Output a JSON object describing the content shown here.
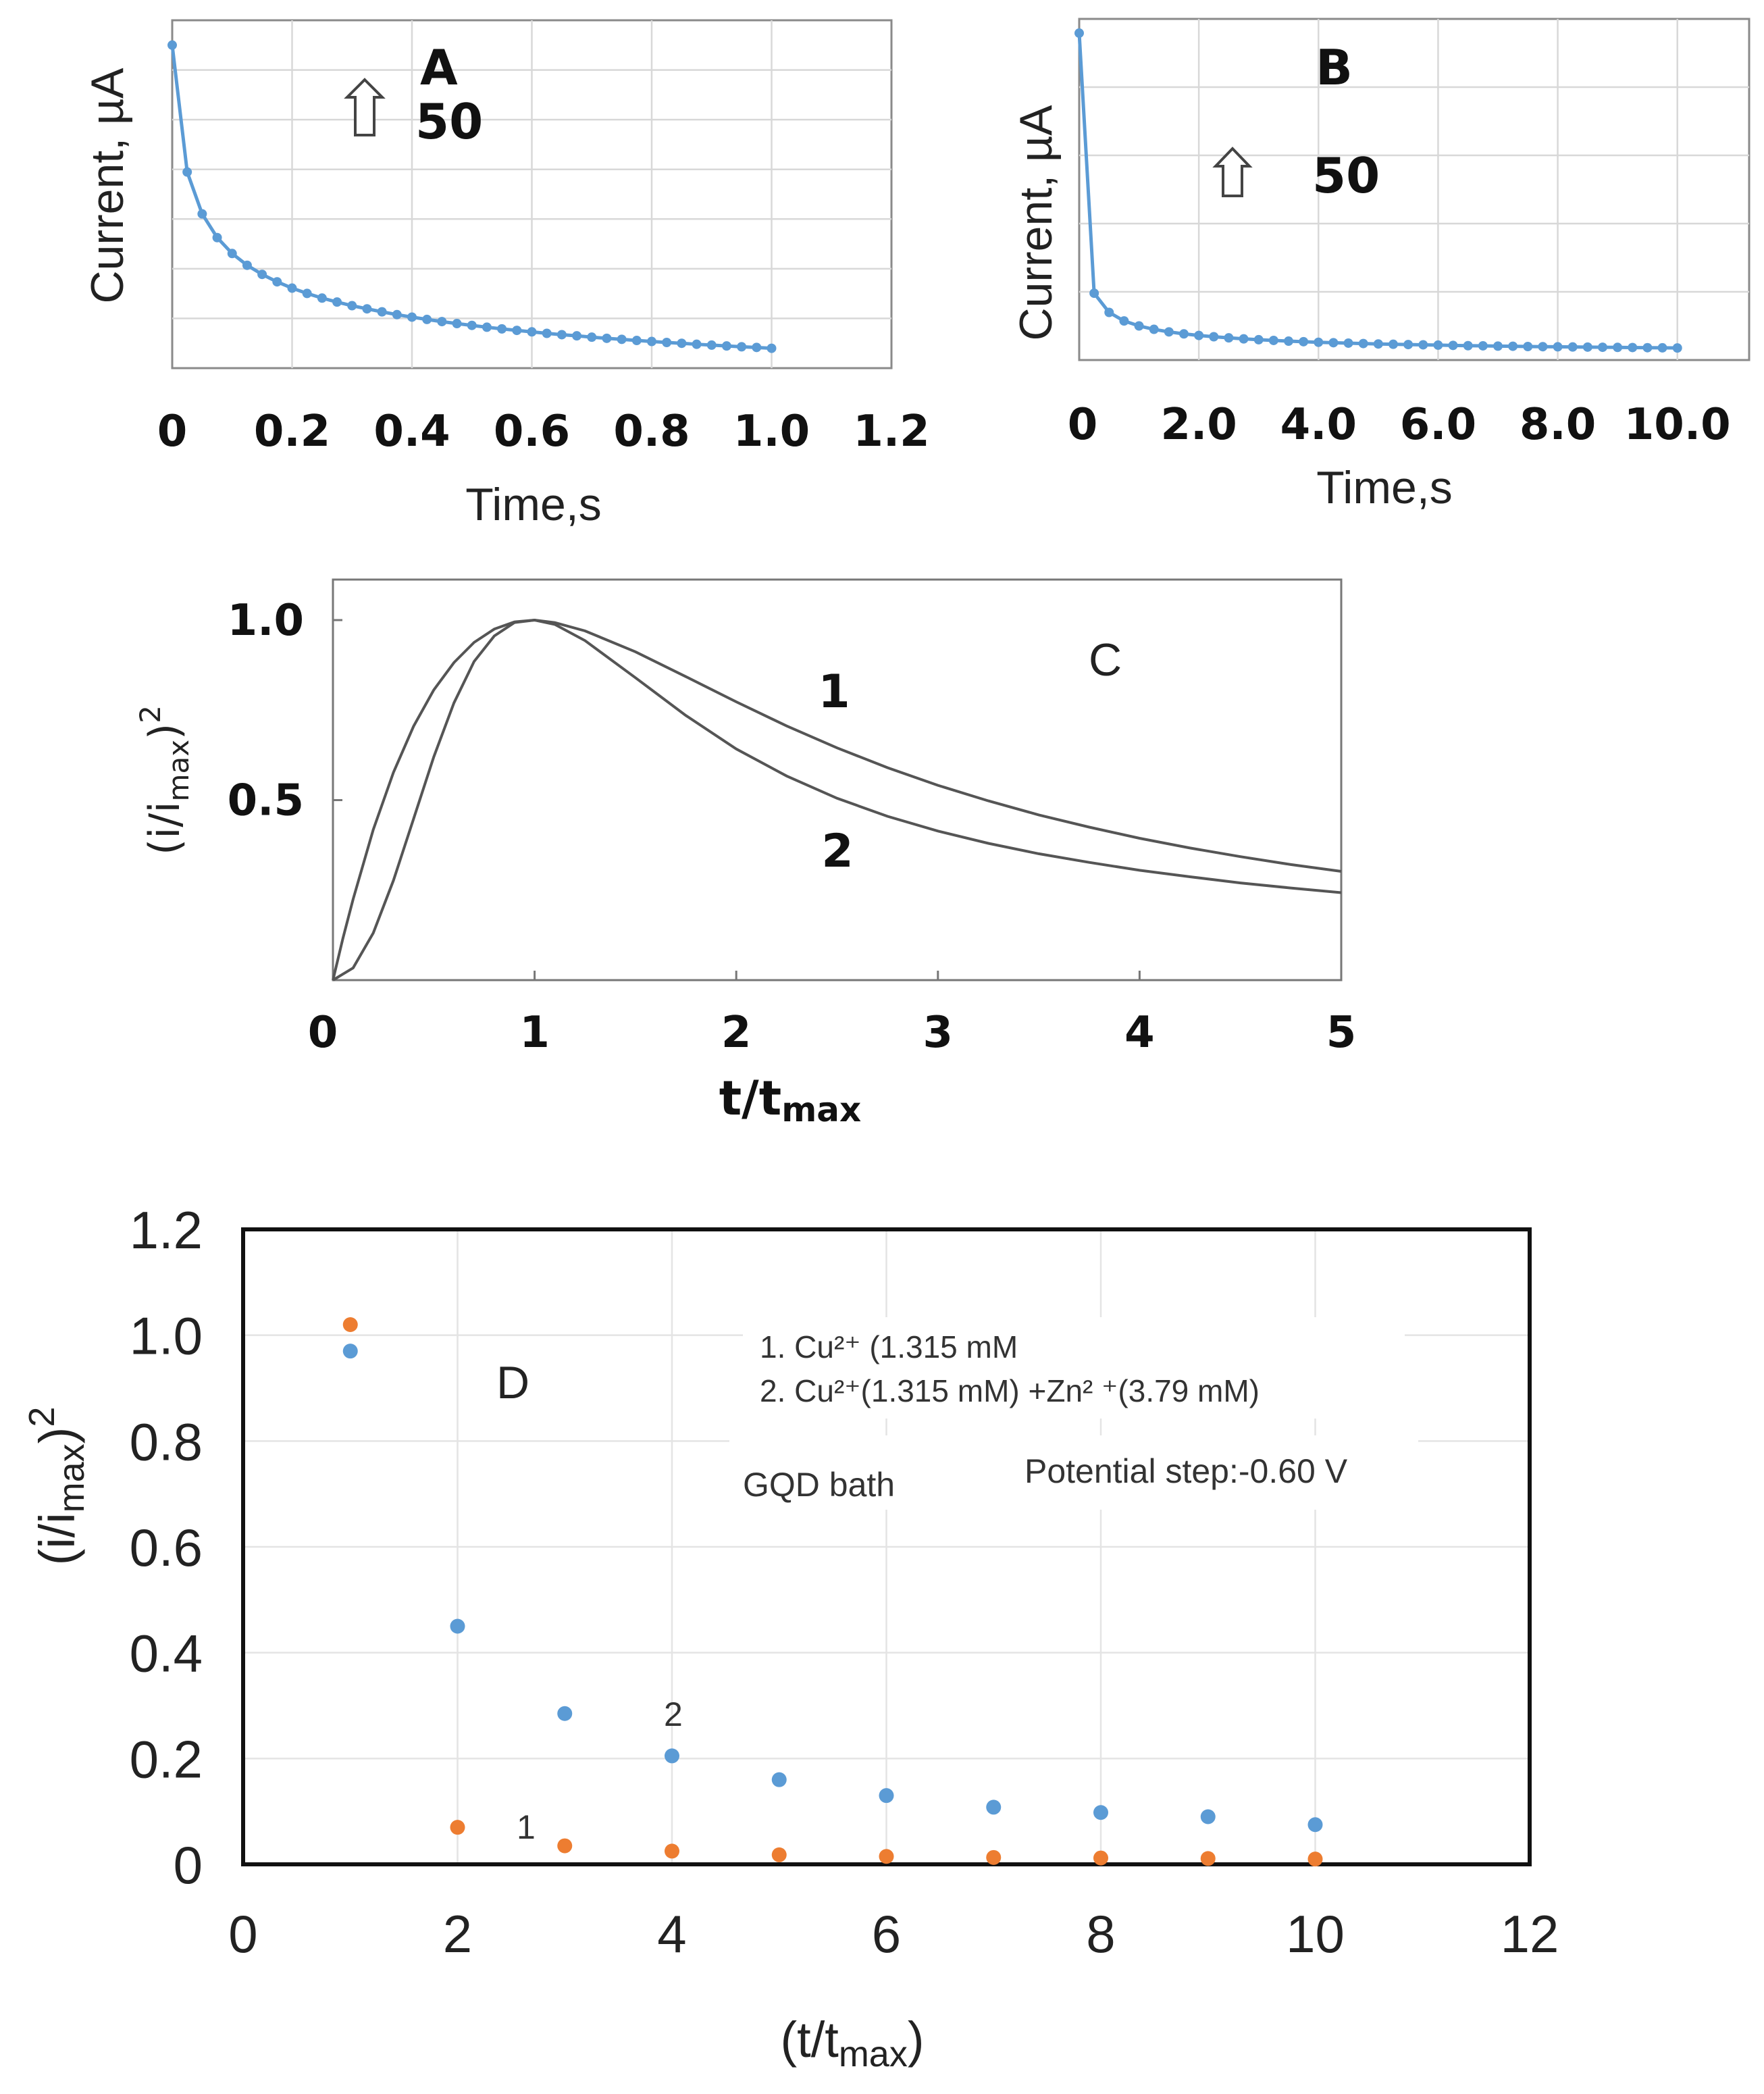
{
  "chart_data": [
    {
      "id": "A",
      "type": "line",
      "panel_label": "A",
      "xlabel": "Time,s",
      "ylabel": "Current, µA",
      "xlim": [
        0,
        1.2
      ],
      "x_ticks": [
        "0",
        "0.2",
        "0.4",
        "0.6",
        "0.8",
        "1.0",
        "1.2"
      ],
      "scale_annotation": "50",
      "series": [
        {
          "name": "current",
          "color": "#5b9bd5",
          "x": [
            0.0,
            0.025,
            0.05,
            0.075,
            0.1,
            0.125,
            0.15,
            0.175,
            0.2,
            0.225,
            0.25,
            0.275,
            0.3,
            0.325,
            0.35,
            0.375,
            0.4,
            0.425,
            0.45,
            0.475,
            0.5,
            0.525,
            0.55,
            0.575,
            0.6,
            0.625,
            0.65,
            0.675,
            0.7,
            0.725,
            0.75,
            0.775,
            0.8,
            0.825,
            0.85,
            0.875,
            0.9,
            0.925,
            0.95,
            0.975,
            1.0
          ],
          "y": [
            235.0,
            158.4,
            133.1,
            118.8,
            109.2,
            102.1,
            96.6,
            92.1,
            88.3,
            85.1,
            82.3,
            79.9,
            77.7,
            75.8,
            74.0,
            72.3,
            70.8,
            69.4,
            68.1,
            66.9,
            65.8,
            64.7,
            63.7,
            62.8,
            61.9,
            61.0,
            60.2,
            59.5,
            58.7,
            58.0,
            57.4,
            56.7,
            56.1,
            55.5,
            55.0,
            54.4,
            53.9,
            53.4,
            52.9,
            52.5,
            52.0
          ]
        }
      ]
    },
    {
      "id": "B",
      "type": "line",
      "panel_label": "B",
      "xlabel": "Time,s",
      "ylabel": "Current, µA",
      "xlim": [
        0,
        11.2
      ],
      "x_ticks": [
        "0",
        "2.0",
        "4.0",
        "6.0",
        "8.0",
        "10.0"
      ],
      "scale_annotation": "50",
      "series": [
        {
          "name": "current",
          "color": "#5b9bd5",
          "x": [
            0.0,
            0.25,
            0.5,
            0.75,
            1.0,
            1.25,
            1.5,
            1.75,
            2.0,
            2.25,
            2.5,
            2.75,
            3.0,
            3.25,
            3.5,
            3.75,
            4.0,
            4.25,
            4.5,
            4.75,
            5.0,
            5.25,
            5.5,
            5.75,
            6.0,
            6.25,
            6.5,
            6.75,
            7.0,
            7.25,
            7.5,
            7.75,
            8.0,
            8.25,
            8.5,
            8.75,
            9.0,
            9.25,
            9.5,
            9.75,
            10.0
          ],
          "y": [
            230.0,
            47.0,
            33.5,
            27.5,
            24.0,
            21.6,
            19.8,
            18.4,
            17.3,
            16.4,
            15.6,
            14.9,
            14.3,
            13.8,
            13.3,
            12.9,
            12.5,
            12.2,
            11.9,
            11.6,
            11.3,
            11.1,
            10.9,
            10.7,
            10.5,
            10.3,
            10.1,
            10.0,
            9.8,
            9.7,
            9.5,
            9.4,
            9.3,
            9.2,
            9.1,
            9.0,
            8.9,
            8.8,
            8.7,
            8.6,
            8.5
          ]
        }
      ]
    },
    {
      "id": "C",
      "type": "line",
      "panel_label": "C",
      "xlabel_main": "t/t",
      "xlabel_sub": "max",
      "ylabel_main": "(i/i",
      "ylabel_sub": "max",
      "ylabel_tail": ")",
      "ylabel_sup": "2",
      "xlim": [
        0,
        5
      ],
      "ylim": [
        0,
        1.1
      ],
      "x_ticks": [
        "0",
        "1",
        "2",
        "3",
        "4",
        "5"
      ],
      "y_ticks": [
        "0.5",
        "1.0"
      ],
      "curve_labels": [
        "1",
        "2"
      ],
      "series": [
        {
          "name": "1",
          "x": [
            0.0,
            0.05,
            0.1,
            0.2,
            0.3,
            0.4,
            0.5,
            0.6,
            0.7,
            0.8,
            0.9,
            1.0,
            1.1,
            1.25,
            1.5,
            1.75,
            2.0,
            2.25,
            2.5,
            2.75,
            3.0,
            3.25,
            3.5,
            3.75,
            4.0,
            4.25,
            4.5,
            4.75,
            5.0
          ],
          "y": [
            0.0,
            0.117,
            0.225,
            0.418,
            0.577,
            0.705,
            0.806,
            0.882,
            0.938,
            0.975,
            0.995,
            1.0,
            0.993,
            0.97,
            0.912,
            0.843,
            0.773,
            0.706,
            0.645,
            0.59,
            0.541,
            0.498,
            0.459,
            0.425,
            0.394,
            0.367,
            0.343,
            0.321,
            0.302
          ]
        },
        {
          "name": "2",
          "x": [
            0.0,
            0.1,
            0.2,
            0.3,
            0.4,
            0.5,
            0.6,
            0.7,
            0.8,
            0.9,
            1.0,
            1.1,
            1.25,
            1.5,
            1.75,
            2.0,
            2.25,
            2.5,
            2.75,
            3.0,
            3.25,
            3.5,
            3.75,
            4.0,
            4.25,
            4.5,
            4.75,
            5.0
          ],
          "y": [
            0.0,
            0.034,
            0.131,
            0.277,
            0.448,
            0.62,
            0.77,
            0.885,
            0.956,
            0.993,
            1.0,
            0.988,
            0.943,
            0.84,
            0.735,
            0.642,
            0.567,
            0.505,
            0.455,
            0.414,
            0.38,
            0.351,
            0.327,
            0.305,
            0.287,
            0.27,
            0.256,
            0.243
          ]
        }
      ]
    },
    {
      "id": "D",
      "type": "scatter",
      "panel_label": "D",
      "xlabel_main": "(t/t",
      "xlabel_sub": "max",
      "xlabel_tail": ")",
      "ylabel_main": "(i/i",
      "ylabel_sub": "max",
      "ylabel_tail": ")",
      "ylabel_sup": "2",
      "xlim": [
        0,
        12
      ],
      "ylim": [
        0,
        1.2
      ],
      "x_ticks": [
        "0",
        "2",
        "4",
        "6",
        "8",
        "10",
        "12"
      ],
      "y_ticks": [
        "0",
        "0.2",
        "0.4",
        "0.6",
        "0.8",
        "1.0",
        "1.2"
      ],
      "legend_line_1": "1. Cu²⁺ (1.315 mM",
      "legend_line_2": "2. Cu²⁺(1.315 mM) +Zn² ⁺(3.79 mM)",
      "bath_note": "GQD bath",
      "potential_note": "Potential step:-0.60 V",
      "point_labels": [
        "1",
        "2"
      ],
      "series": [
        {
          "name": "1",
          "color": "#ed7d31",
          "x": [
            1,
            2,
            3,
            4,
            5,
            6,
            7,
            8,
            9,
            10
          ],
          "y": [
            1.02,
            0.07,
            0.035,
            0.025,
            0.018,
            0.015,
            0.013,
            0.012,
            0.011,
            0.01
          ]
        },
        {
          "name": "2",
          "color": "#5b9bd5",
          "x": [
            1,
            2,
            3,
            4,
            5,
            6,
            7,
            8,
            9,
            10
          ],
          "y": [
            0.97,
            0.45,
            0.285,
            0.205,
            0.16,
            0.13,
            0.108,
            0.098,
            0.09,
            0.075
          ]
        }
      ]
    }
  ]
}
